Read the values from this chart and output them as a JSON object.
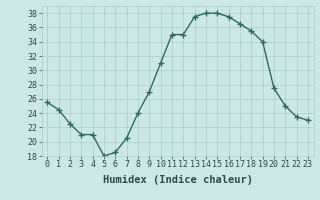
{
  "x": [
    0,
    1,
    2,
    3,
    4,
    5,
    6,
    7,
    8,
    9,
    10,
    11,
    12,
    13,
    14,
    15,
    16,
    17,
    18,
    19,
    20,
    21,
    22,
    23
  ],
  "y": [
    25.5,
    24.5,
    22.5,
    21,
    21,
    18,
    18.5,
    20.5,
    24,
    27,
    31,
    35,
    35,
    37.5,
    38,
    38,
    37.5,
    36.5,
    35.5,
    34,
    27.5,
    25,
    23.5,
    23
  ],
  "line_color": "#2e6b5e",
  "marker_color": "#2e6b5e",
  "bg_color": "#cce8e4",
  "grid_color": "#aacfca",
  "xlabel": "Humidex (Indice chaleur)",
  "xlim": [
    -0.5,
    23.5
  ],
  "ylim": [
    18,
    39
  ],
  "yticks": [
    18,
    20,
    22,
    24,
    26,
    28,
    30,
    32,
    34,
    36,
    38
  ],
  "xticks": [
    0,
    1,
    2,
    3,
    4,
    5,
    6,
    7,
    8,
    9,
    10,
    11,
    12,
    13,
    14,
    15,
    16,
    17,
    18,
    19,
    20,
    21,
    22,
    23
  ],
  "xtick_labels": [
    "0",
    "1",
    "2",
    "3",
    "4",
    "5",
    "6",
    "7",
    "8",
    "9",
    "10",
    "11",
    "12",
    "13",
    "14",
    "15",
    "16",
    "17",
    "18",
    "19",
    "20",
    "21",
    "22",
    "23"
  ],
  "font_color": "#2e4a47",
  "xlabel_fontsize": 7.5,
  "tick_fontsize": 6,
  "linewidth": 1.0,
  "markersize": 4
}
